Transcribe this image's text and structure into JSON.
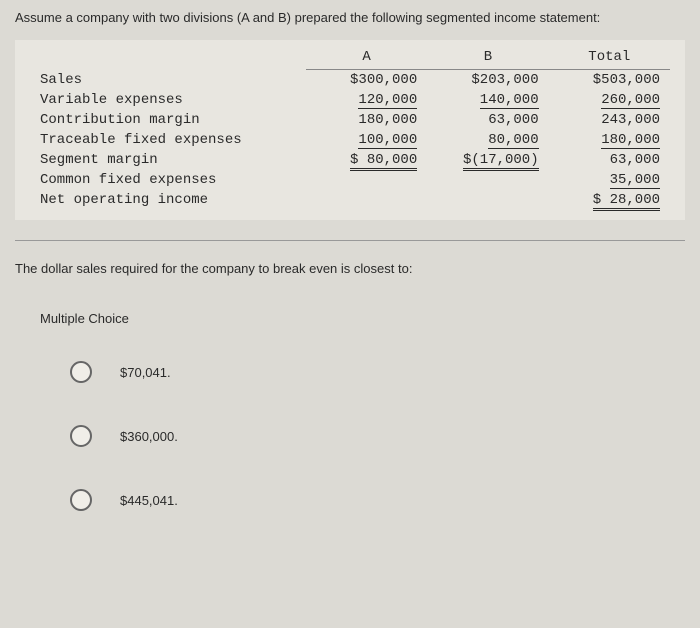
{
  "intro": "Assume a company with two divisions (A and B) prepared the following segmented income statement:",
  "table": {
    "headers": {
      "col1": "",
      "col2": "A",
      "col3": "B",
      "col4": "Total"
    },
    "rows": [
      {
        "label": "Sales",
        "a": "$300,000",
        "b": "$203,000",
        "total": "$503,000"
      },
      {
        "label": "Variable expenses",
        "a": "120,000",
        "b": "140,000",
        "total": "260,000"
      },
      {
        "label": "Contribution margin",
        "a": "180,000",
        "b": "63,000",
        "total": "243,000"
      },
      {
        "label": "Traceable fixed expenses",
        "a": "100,000",
        "b": "80,000",
        "total": "180,000"
      },
      {
        "label": "Segment margin",
        "a": "$ 80,000",
        "b": "$(17,000)",
        "total": "63,000"
      },
      {
        "label": "Common fixed expenses",
        "a": "",
        "b": "",
        "total": "35,000"
      },
      {
        "label": "Net operating income",
        "a": "",
        "b": "",
        "total": "$ 28,000"
      }
    ]
  },
  "question": "The dollar sales required for the company to break even is closest to:",
  "mc_label": "Multiple Choice",
  "options": [
    {
      "text": "$70,041."
    },
    {
      "text": "$360,000."
    },
    {
      "text": "$445,041."
    }
  ],
  "style": {
    "background_color": "#dcdad4",
    "table_bg": "#e8e6e0",
    "text_color": "#2a2a2a",
    "radio_border": "#666"
  }
}
